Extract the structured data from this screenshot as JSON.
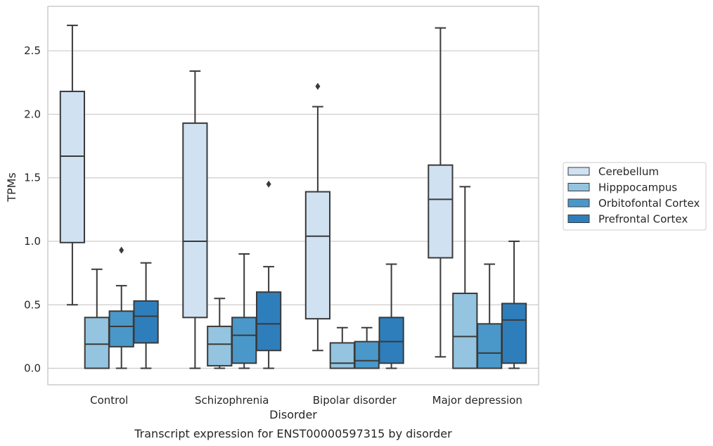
{
  "chart_data": {
    "type": "box",
    "caption": "Transcript expression for ENST00000597315 by disorder",
    "xlabel": "Disorder",
    "ylabel": "TPMs",
    "ylim": [
      -0.13,
      2.85
    ],
    "yticks": [
      0.0,
      0.5,
      1.0,
      1.5,
      2.0,
      2.5
    ],
    "ytick_labels": [
      "0.0",
      "0.5",
      "1.0",
      "1.5",
      "2.0",
      "2.5"
    ],
    "grid": "horizontal",
    "legend_position": "right",
    "categories": [
      "Control",
      "Schizophrenia",
      "Bipolar disorder",
      "Major depression"
    ],
    "series": [
      {
        "name": "Cerebellum",
        "color": "#d0e1f2",
        "boxes": [
          {
            "whislo": 0.5,
            "q1": 0.99,
            "med": 1.67,
            "q3": 2.18,
            "whishi": 2.7,
            "fliers": []
          },
          {
            "whislo": 0.0,
            "q1": 0.4,
            "med": 1.0,
            "q3": 1.93,
            "whishi": 2.34,
            "fliers": []
          },
          {
            "whislo": 0.14,
            "q1": 0.39,
            "med": 1.04,
            "q3": 1.39,
            "whishi": 2.06,
            "fliers": [
              2.22
            ]
          },
          {
            "whislo": 0.09,
            "q1": 0.87,
            "med": 1.33,
            "q3": 1.6,
            "whishi": 2.68,
            "fliers": []
          }
        ]
      },
      {
        "name": "Hipppocampus",
        "color": "#94c4df",
        "boxes": [
          {
            "whislo": 0.0,
            "q1": 0.0,
            "med": 0.19,
            "q3": 0.4,
            "whishi": 0.78,
            "fliers": []
          },
          {
            "whislo": 0.0,
            "q1": 0.02,
            "med": 0.19,
            "q3": 0.33,
            "whishi": 0.55,
            "fliers": []
          },
          {
            "whislo": 0.0,
            "q1": 0.0,
            "med": 0.04,
            "q3": 0.2,
            "whishi": 0.32,
            "fliers": []
          },
          {
            "whislo": 0.0,
            "q1": 0.0,
            "med": 0.25,
            "q3": 0.59,
            "whishi": 1.43,
            "fliers": []
          }
        ]
      },
      {
        "name": "Orbitofontal Cortex",
        "color": "#4a98c9",
        "boxes": [
          {
            "whislo": 0.0,
            "q1": 0.17,
            "med": 0.33,
            "q3": 0.45,
            "whishi": 0.65,
            "fliers": [
              0.93
            ]
          },
          {
            "whislo": 0.0,
            "q1": 0.04,
            "med": 0.26,
            "q3": 0.4,
            "whishi": 0.9,
            "fliers": []
          },
          {
            "whislo": 0.0,
            "q1": 0.0,
            "med": 0.06,
            "q3": 0.21,
            "whishi": 0.32,
            "fliers": []
          },
          {
            "whislo": 0.0,
            "q1": 0.0,
            "med": 0.12,
            "q3": 0.35,
            "whishi": 0.82,
            "fliers": []
          }
        ]
      },
      {
        "name": "Prefrontal Cortex",
        "color": "#2e7ebc",
        "boxes": [
          {
            "whislo": 0.0,
            "q1": 0.2,
            "med": 0.41,
            "q3": 0.53,
            "whishi": 0.83,
            "fliers": []
          },
          {
            "whislo": 0.0,
            "q1": 0.14,
            "med": 0.35,
            "q3": 0.6,
            "whishi": 0.8,
            "fliers": [
              1.45
            ]
          },
          {
            "whislo": 0.0,
            "q1": 0.04,
            "med": 0.21,
            "q3": 0.4,
            "whishi": 0.82,
            "fliers": []
          },
          {
            "whislo": 0.0,
            "q1": 0.04,
            "med": 0.38,
            "q3": 0.51,
            "whishi": 1.0,
            "fliers": []
          }
        ]
      }
    ]
  }
}
